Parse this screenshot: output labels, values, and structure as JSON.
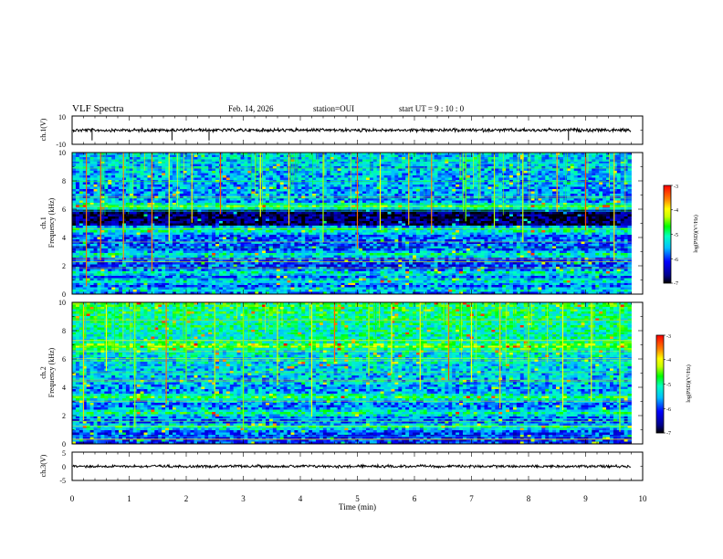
{
  "header": {
    "title": "VLF Spectra",
    "date": "Feb. 14, 2026",
    "station": "station=OUI",
    "start": "start  UT =   9 : 10 : 0"
  },
  "colors": {
    "waveform": "#000000",
    "frame": "#000000",
    "colormap": [
      "#000000",
      "#00008b",
      "#0000ff",
      "#00bfff",
      "#00ffc0",
      "#00ff00",
      "#c8ff00",
      "#ffff00",
      "#ff8000",
      "#ff0000"
    ]
  },
  "chart_data": [
    {
      "type": "line",
      "name": "ch1-waveform",
      "ylabel": "ch.1(V)",
      "ylim": [
        -10,
        10
      ],
      "ytick_labels": [
        "10",
        "-10"
      ],
      "xlim": [
        0,
        10
      ],
      "data_end_min": 9.8,
      "baseline_v": 0.0,
      "amplitude_v": 1.0,
      "spikes_min": [
        0.35,
        1.75,
        2.4,
        8.7
      ]
    },
    {
      "type": "heatmap",
      "name": "ch1-spectrogram",
      "ylabel": "ch.1\nFrequency (kHz)",
      "ylabel_top": "ch.1",
      "ylabel_bottom": "Frequency (kHz)",
      "ylim": [
        0,
        10
      ],
      "ytick_labels": [
        "0",
        "2",
        "4",
        "6",
        "8",
        "10"
      ],
      "xlim": [
        0,
        10
      ],
      "data_end_min": 9.8,
      "colorbar": {
        "label": "log(PSD)(V²/Hz)",
        "range": [
          -7,
          -3
        ],
        "tick_labels": [
          "-3",
          "-4",
          "-5",
          "-6",
          "-7"
        ]
      },
      "low_intensity_band_khz": [
        4.8,
        6.0
      ],
      "bright_bands_khz": [
        0.3,
        0.9,
        1.5,
        2.8,
        4.5,
        6.2
      ],
      "impulse_times_min": [
        0.25,
        0.5,
        0.9,
        1.4,
        1.7,
        2.1,
        2.6,
        3.3,
        3.8,
        4.4,
        5.0,
        5.4,
        5.9,
        6.3,
        6.9,
        7.4,
        7.9,
        8.5,
        9.0,
        9.5
      ]
    },
    {
      "type": "heatmap",
      "name": "ch2-spectrogram",
      "ylabel": "ch.2\nFrequency (kHz)",
      "ylabel_top": "ch.2",
      "ylabel_bottom": "Frequency (kHz)",
      "ylim": [
        0,
        10
      ],
      "ytick_labels": [
        "0",
        "2",
        "4",
        "6",
        "8",
        "10"
      ],
      "xlim": [
        0,
        10
      ],
      "data_end_min": 9.8,
      "colorbar": {
        "label": "log(PSD)(V²/Hz)",
        "range": [
          -7,
          -3
        ],
        "tick_labels": [
          "-3",
          "-4",
          "-5",
          "-6",
          "-7"
        ]
      },
      "bright_bands_khz": [
        3.3,
        6.9,
        1.2,
        2.2
      ],
      "impulse_times_min": [
        0.2,
        0.6,
        1.1,
        1.65,
        2.0,
        2.5,
        3.0,
        3.6,
        4.2,
        4.6,
        5.2,
        5.6,
        6.1,
        6.6,
        7.0,
        7.5,
        8.0,
        8.6,
        9.1,
        9.6
      ]
    },
    {
      "type": "line",
      "name": "ch3-waveform",
      "ylabel": "ch.3(V)",
      "ylim": [
        -5,
        5
      ],
      "ytick_labels": [
        "5",
        "0",
        "-5"
      ],
      "xlim": [
        0,
        10
      ],
      "xlabel": "Time (min)",
      "xtick_labels": [
        "0",
        "1",
        "2",
        "3",
        "4",
        "5",
        "6",
        "7",
        "8",
        "9",
        "10"
      ],
      "data_end_min": 9.8,
      "baseline_v": 0.0,
      "amplitude_v": 0.4
    }
  ]
}
